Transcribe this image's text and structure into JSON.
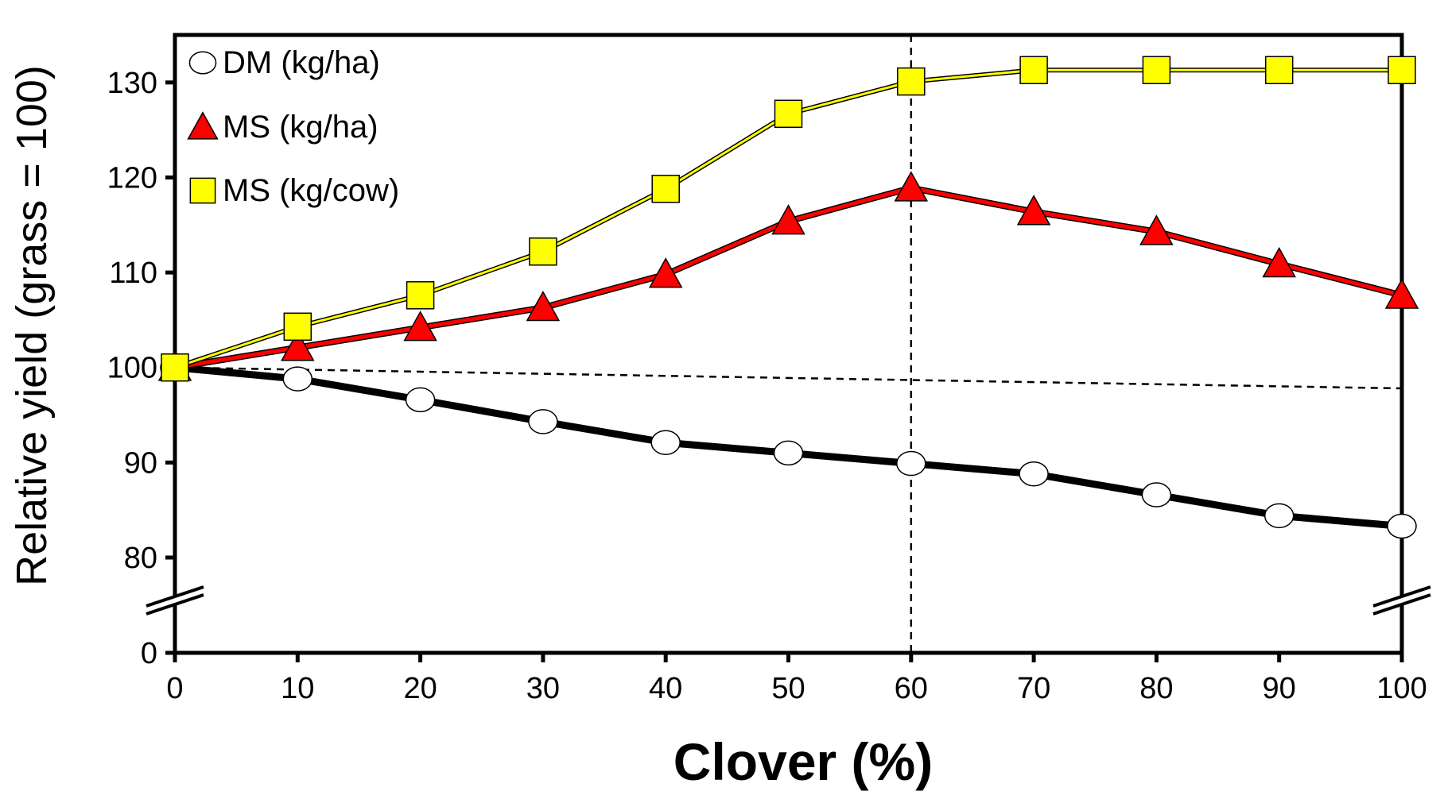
{
  "chart_data": {
    "type": "line",
    "xlabel": "Clover (%)",
    "ylabel": "Relative yield (grass = 100)",
    "x": [
      0,
      10,
      20,
      30,
      40,
      50,
      60,
      70,
      80,
      90,
      100
    ],
    "xlim": [
      0,
      100
    ],
    "x_ticks": [
      "0",
      "10",
      "20",
      "30",
      "40",
      "50",
      "60",
      "70",
      "80",
      "90",
      "100"
    ],
    "y_ticks": [
      "0",
      "80",
      "90",
      "100",
      "110",
      "120",
      "130"
    ],
    "ylim_broken": {
      "lower": 0,
      "break_to": 75,
      "upper": 135
    },
    "axis_break": true,
    "grid": false,
    "legend_position": "top-left",
    "series": [
      {
        "name": "DM (kg/ha)",
        "marker": "circle",
        "marker_color": "#ffffff",
        "line_color": "#000000",
        "values": [
          100,
          98.8,
          96.6,
          94.3,
          92.1,
          91.0,
          89.9,
          88.8,
          86.6,
          84.4,
          83.3
        ]
      },
      {
        "name": "MS (kg/ha)",
        "marker": "triangle",
        "marker_color": "#ff0000",
        "line_color": "#ff0000",
        "values": [
          100,
          102.1,
          104.2,
          106.3,
          109.8,
          115.4,
          118.9,
          116.4,
          114.3,
          110.9,
          107.6
        ]
      },
      {
        "name": "MS (kg/cow)",
        "marker": "square",
        "marker_color": "#ffff00",
        "line_color": "#ffff00",
        "values": [
          100,
          104.3,
          107.6,
          112.2,
          118.8,
          126.7,
          130.1,
          131.3,
          131.3,
          131.3,
          131.3
        ]
      }
    ],
    "reference_lines": [
      {
        "style": "dashed",
        "orientation": "vertical",
        "x": 60
      },
      {
        "style": "dashed",
        "orientation": "sloped",
        "x": [
          0,
          100
        ],
        "y": [
          100,
          97.8
        ]
      }
    ]
  }
}
